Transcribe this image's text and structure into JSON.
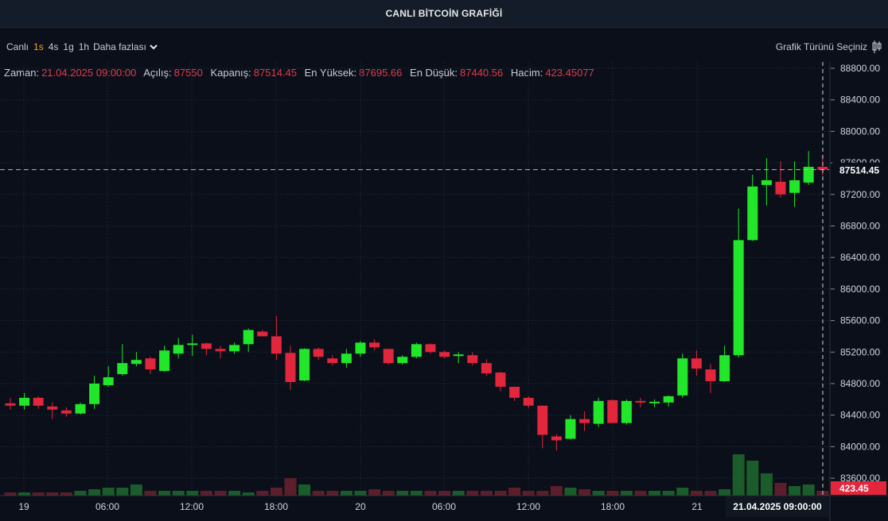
{
  "title": "CANLI BİTCOİN GRAFİĞİ",
  "toolbar": {
    "live_label": "Canlı",
    "intervals": [
      "1s",
      "4s",
      "1g",
      "1h"
    ],
    "active_interval": "1s",
    "more_label": "Daha fazlası",
    "chart_type_label": "Grafik Türünü Seçiniz"
  },
  "legend": {
    "time_label": "Zaman:",
    "time_value": "21.04.2025 09:00:00",
    "open_label": "Açılış:",
    "open_value": "87550",
    "close_label": "Kapanış:",
    "close_value": "87514.45",
    "high_label": "En Yüksek:",
    "high_value": "87695.66",
    "low_label": "En Düşük:",
    "low_value": "87440.56",
    "volume_label": "Hacim:",
    "volume_value": "423.45077"
  },
  "colors": {
    "up": "#22e62a",
    "down": "#e2263c",
    "background": "#0a0f1a",
    "price_tag": "#e2263c"
  },
  "chart_data": {
    "type": "candlestick",
    "y_ticks": [
      "88800.00",
      "88400.00",
      "88000.00",
      "87600.00",
      "87200.00",
      "86800.00",
      "86400.00",
      "86000.00",
      "85600.00",
      "85200.00",
      "84800.00",
      "84400.00",
      "84000.00",
      "83600.00"
    ],
    "ylim": [
      83400,
      88800
    ],
    "x_ticks": [
      "19",
      "06:00",
      "12:00",
      "18:00",
      "20",
      "06:00",
      "12:00",
      "18:00",
      "21"
    ],
    "crosshair_label": "21.04.2025  09:00:00",
    "last_price_label": "87514.45",
    "volume_label": "423.45",
    "grid": true,
    "candles": [
      {
        "o": 84550,
        "h": 84620,
        "l": 84470,
        "c": 84520
      },
      {
        "o": 84520,
        "h": 84680,
        "l": 84470,
        "c": 84620
      },
      {
        "o": 84620,
        "h": 84640,
        "l": 84480,
        "c": 84520
      },
      {
        "o": 84510,
        "h": 84560,
        "l": 84350,
        "c": 84470
      },
      {
        "o": 84460,
        "h": 84500,
        "l": 84380,
        "c": 84420
      },
      {
        "o": 84420,
        "h": 84560,
        "l": 84410,
        "c": 84540
      },
      {
        "o": 84540,
        "h": 84900,
        "l": 84480,
        "c": 84800
      },
      {
        "o": 84780,
        "h": 85020,
        "l": 84760,
        "c": 84880
      },
      {
        "o": 84920,
        "h": 85300,
        "l": 84900,
        "c": 85060
      },
      {
        "o": 85050,
        "h": 85200,
        "l": 85020,
        "c": 85100
      },
      {
        "o": 85120,
        "h": 85140,
        "l": 84920,
        "c": 84980
      },
      {
        "o": 84960,
        "h": 85280,
        "l": 84950,
        "c": 85220
      },
      {
        "o": 85180,
        "h": 85380,
        "l": 85120,
        "c": 85290
      },
      {
        "o": 85300,
        "h": 85420,
        "l": 85150,
        "c": 85310
      },
      {
        "o": 85310,
        "h": 85320,
        "l": 85160,
        "c": 85240
      },
      {
        "o": 85240,
        "h": 85280,
        "l": 85120,
        "c": 85210
      },
      {
        "o": 85210,
        "h": 85320,
        "l": 85180,
        "c": 85290
      },
      {
        "o": 85300,
        "h": 85500,
        "l": 85200,
        "c": 85480
      },
      {
        "o": 85460,
        "h": 85480,
        "l": 85400,
        "c": 85400
      },
      {
        "o": 85400,
        "h": 85660,
        "l": 85100,
        "c": 85180
      },
      {
        "o": 85190,
        "h": 85280,
        "l": 84720,
        "c": 84820
      },
      {
        "o": 84840,
        "h": 85250,
        "l": 84830,
        "c": 85240
      },
      {
        "o": 85240,
        "h": 85260,
        "l": 85100,
        "c": 85140
      },
      {
        "o": 85120,
        "h": 85160,
        "l": 85030,
        "c": 85060
      },
      {
        "o": 85060,
        "h": 85240,
        "l": 85000,
        "c": 85180
      },
      {
        "o": 85180,
        "h": 85340,
        "l": 85140,
        "c": 85320
      },
      {
        "o": 85320,
        "h": 85360,
        "l": 85220,
        "c": 85260
      },
      {
        "o": 85240,
        "h": 85240,
        "l": 85040,
        "c": 85060
      },
      {
        "o": 85060,
        "h": 85160,
        "l": 85040,
        "c": 85140
      },
      {
        "o": 85140,
        "h": 85320,
        "l": 85120,
        "c": 85300
      },
      {
        "o": 85300,
        "h": 85310,
        "l": 85180,
        "c": 85200
      },
      {
        "o": 85200,
        "h": 85220,
        "l": 85120,
        "c": 85140
      },
      {
        "o": 85160,
        "h": 85200,
        "l": 85060,
        "c": 85170
      },
      {
        "o": 85160,
        "h": 85200,
        "l": 85030,
        "c": 85060
      },
      {
        "o": 85060,
        "h": 85110,
        "l": 84900,
        "c": 84930
      },
      {
        "o": 84940,
        "h": 84950,
        "l": 84700,
        "c": 84760
      },
      {
        "o": 84760,
        "h": 84760,
        "l": 84580,
        "c": 84620
      },
      {
        "o": 84620,
        "h": 84640,
        "l": 84490,
        "c": 84520
      },
      {
        "o": 84520,
        "h": 84520,
        "l": 83980,
        "c": 84150
      },
      {
        "o": 84130,
        "h": 84160,
        "l": 83950,
        "c": 84080
      },
      {
        "o": 84100,
        "h": 84400,
        "l": 84090,
        "c": 84350
      },
      {
        "o": 84350,
        "h": 84450,
        "l": 84200,
        "c": 84300
      },
      {
        "o": 84290,
        "h": 84620,
        "l": 84250,
        "c": 84580
      },
      {
        "o": 84590,
        "h": 84600,
        "l": 84300,
        "c": 84300
      },
      {
        "o": 84300,
        "h": 84600,
        "l": 84280,
        "c": 84580
      },
      {
        "o": 84580,
        "h": 84620,
        "l": 84500,
        "c": 84560
      },
      {
        "o": 84560,
        "h": 84600,
        "l": 84500,
        "c": 84570
      },
      {
        "o": 84560,
        "h": 84650,
        "l": 84510,
        "c": 84640
      },
      {
        "o": 84650,
        "h": 85180,
        "l": 84620,
        "c": 85120
      },
      {
        "o": 85120,
        "h": 85220,
        "l": 84900,
        "c": 84990
      },
      {
        "o": 84980,
        "h": 85050,
        "l": 84680,
        "c": 84830
      },
      {
        "o": 84830,
        "h": 85280,
        "l": 84820,
        "c": 85160
      },
      {
        "o": 85160,
        "h": 87020,
        "l": 85130,
        "c": 86620
      },
      {
        "o": 86620,
        "h": 87450,
        "l": 86610,
        "c": 87300
      },
      {
        "o": 87320,
        "h": 87660,
        "l": 87060,
        "c": 87380
      },
      {
        "o": 87360,
        "h": 87620,
        "l": 87160,
        "c": 87200
      },
      {
        "o": 87220,
        "h": 87620,
        "l": 87040,
        "c": 87380
      },
      {
        "o": 87350,
        "h": 87750,
        "l": 87320,
        "c": 87550
      },
      {
        "o": 87550,
        "h": 87696,
        "l": 87440,
        "c": 87514
      }
    ],
    "volumes": [
      2,
      2,
      2,
      2,
      2,
      3,
      4,
      5,
      5,
      7,
      3,
      3,
      3,
      3,
      3,
      3,
      3,
      2,
      3,
      5,
      11,
      7,
      3,
      3,
      3,
      3,
      4,
      3,
      3,
      3,
      3,
      3,
      3,
      3,
      3,
      3,
      5,
      3,
      3,
      6,
      5,
      4,
      3,
      3,
      3,
      3,
      3,
      3,
      5,
      3,
      3,
      4,
      26,
      22,
      14,
      8,
      6,
      7,
      3
    ]
  }
}
